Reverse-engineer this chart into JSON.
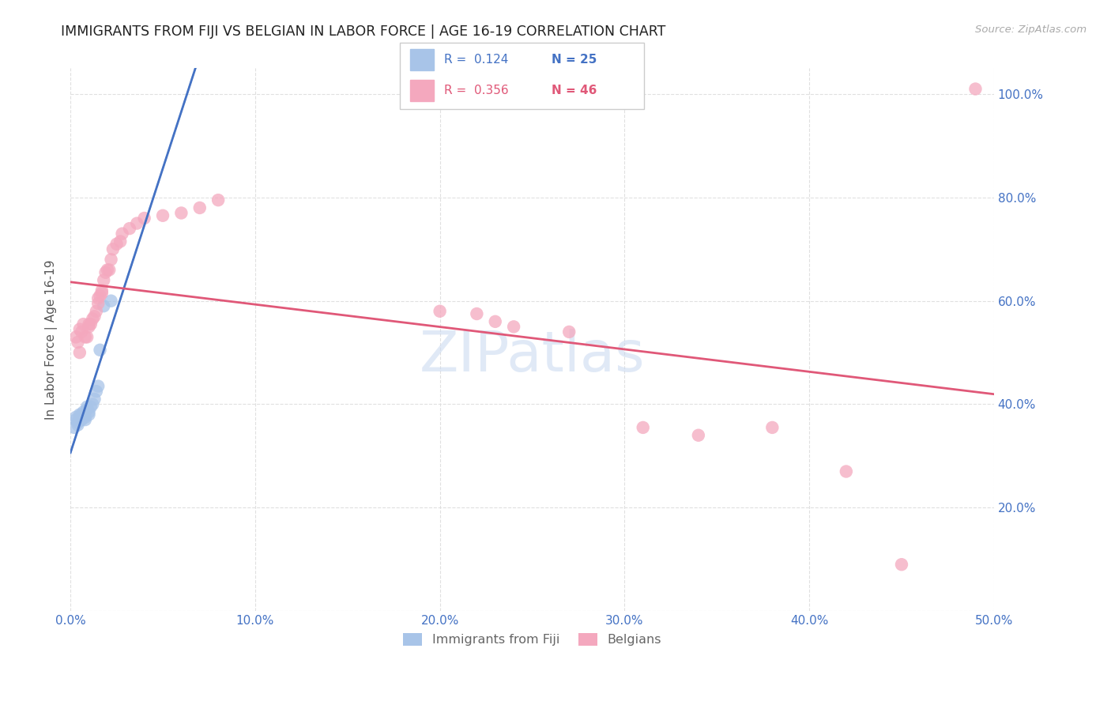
{
  "title": "IMMIGRANTS FROM FIJI VS BELGIAN IN LABOR FORCE | AGE 16-19 CORRELATION CHART",
  "source": "Source: ZipAtlas.com",
  "ylabel": "In Labor Force | Age 16-19",
  "xlim": [
    0.0,
    0.5
  ],
  "ylim": [
    0.0,
    1.05
  ],
  "xticks": [
    0.0,
    0.1,
    0.2,
    0.3,
    0.4,
    0.5
  ],
  "yticks": [
    0.0,
    0.2,
    0.4,
    0.6,
    0.8,
    1.0
  ],
  "xticklabels": [
    "0.0%",
    "10.0%",
    "20.0%",
    "30.0%",
    "40.0%",
    "50.0%"
  ],
  "yticklabels": [
    "",
    "20.0%",
    "40.0%",
    "60.0%",
    "80.0%",
    "100.0%"
  ],
  "fiji_R": "0.124",
  "fiji_N": "25",
  "belgian_R": "0.356",
  "belgian_N": "46",
  "fiji_color": "#a8c4e8",
  "belgian_color": "#f4a8be",
  "fiji_line_color": "#4472c4",
  "belgian_line_color": "#e05878",
  "fiji_x": [
    0.002,
    0.003,
    0.003,
    0.004,
    0.004,
    0.005,
    0.005,
    0.006,
    0.006,
    0.007,
    0.007,
    0.008,
    0.008,
    0.009,
    0.009,
    0.01,
    0.01,
    0.011,
    0.012,
    0.013,
    0.014,
    0.015,
    0.016,
    0.018,
    0.022
  ],
  "fiji_y": [
    0.355,
    0.375,
    0.37,
    0.365,
    0.36,
    0.38,
    0.375,
    0.37,
    0.38,
    0.38,
    0.385,
    0.37,
    0.375,
    0.39,
    0.395,
    0.38,
    0.385,
    0.395,
    0.4,
    0.41,
    0.425,
    0.435,
    0.505,
    0.59,
    0.6
  ],
  "belgian_x": [
    0.003,
    0.004,
    0.005,
    0.005,
    0.006,
    0.007,
    0.008,
    0.009,
    0.01,
    0.01,
    0.011,
    0.012,
    0.013,
    0.014,
    0.015,
    0.015,
    0.016,
    0.017,
    0.017,
    0.018,
    0.019,
    0.02,
    0.021,
    0.022,
    0.023,
    0.025,
    0.027,
    0.028,
    0.032,
    0.036,
    0.04,
    0.05,
    0.06,
    0.07,
    0.08,
    0.2,
    0.22,
    0.23,
    0.24,
    0.27,
    0.31,
    0.34,
    0.38,
    0.42,
    0.45,
    0.49
  ],
  "belgian_y": [
    0.53,
    0.52,
    0.545,
    0.5,
    0.54,
    0.555,
    0.53,
    0.53,
    0.55,
    0.555,
    0.555,
    0.565,
    0.57,
    0.58,
    0.595,
    0.605,
    0.61,
    0.615,
    0.62,
    0.64,
    0.655,
    0.66,
    0.66,
    0.68,
    0.7,
    0.71,
    0.715,
    0.73,
    0.74,
    0.75,
    0.76,
    0.765,
    0.77,
    0.78,
    0.795,
    0.58,
    0.575,
    0.56,
    0.55,
    0.54,
    0.355,
    0.34,
    0.355,
    0.27,
    0.09,
    1.01
  ],
  "watermark_text": "ZIPatlas",
  "background_color": "#ffffff",
  "grid_color": "#dddddd",
  "tick_color": "#4472c4",
  "legend_fiji_label": "Immigrants from Fiji",
  "legend_belgian_label": "Belgians"
}
